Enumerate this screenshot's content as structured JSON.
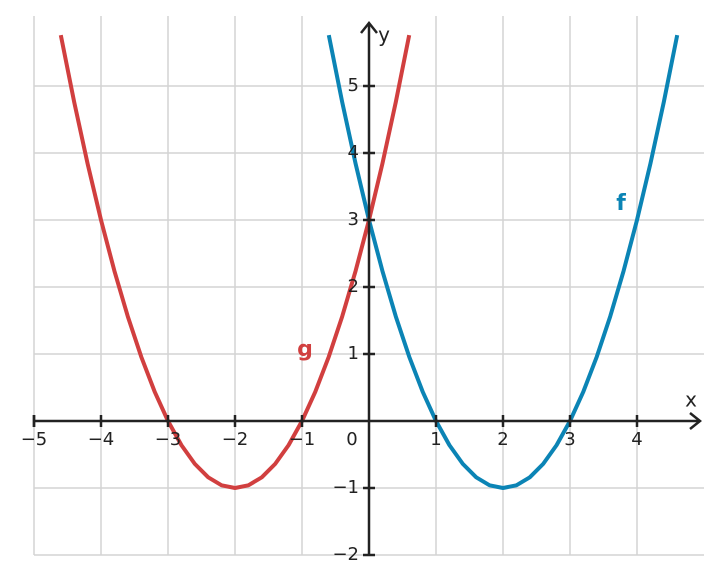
{
  "chart_data": {
    "type": "line",
    "x_label": "x",
    "y_label": "y",
    "xlim": [
      -5,
      5
    ],
    "ylim": [
      -2,
      6
    ],
    "xticks": [
      {
        "value": -5,
        "label": "−5"
      },
      {
        "value": -4,
        "label": "−4"
      },
      {
        "value": -3,
        "label": "−3"
      },
      {
        "value": -2,
        "label": "−2"
      },
      {
        "value": -1,
        "label": "−1"
      },
      0,
      1,
      2,
      3,
      4
    ],
    "yticks": [
      {
        "value": -2,
        "label": "−2"
      },
      {
        "value": -1,
        "label": "−1"
      },
      1,
      2,
      3,
      4,
      5
    ],
    "grid": true,
    "series": [
      {
        "name": "f",
        "color": "#0b84b5",
        "x": [
          -0.6,
          -0.4,
          -0.2,
          0,
          0.2,
          0.4,
          0.6,
          0.8,
          1,
          1.2,
          1.4,
          1.6,
          1.8,
          2,
          2.2,
          2.4,
          2.6,
          2.8,
          3,
          3.2,
          3.4,
          3.6,
          3.8,
          4,
          4.2,
          4.4,
          4.6
        ],
        "values": [
          5.76,
          4.76,
          3.84,
          3,
          2.24,
          1.56,
          0.96,
          0.44,
          0,
          -0.36,
          -0.64,
          -0.84,
          -0.96,
          -1,
          -0.96,
          -0.84,
          -0.64,
          -0.36,
          0,
          0.44,
          0.96,
          1.56,
          2.24,
          3,
          3.84,
          4.76,
          5.76
        ]
      },
      {
        "name": "g",
        "color": "#d13f3f",
        "x": [
          -4.6,
          -4.4,
          -4.2,
          -4,
          -3.8,
          -3.6,
          -3.4,
          -3.2,
          -3,
          -2.8,
          -2.6,
          -2.4,
          -2.2,
          -2,
          -1.8,
          -1.6,
          -1.4,
          -1.2,
          -1,
          -0.8,
          -0.6,
          -0.4,
          -0.2,
          0,
          0.2,
          0.4,
          0.6
        ],
        "values": [
          5.76,
          4.76,
          3.84,
          3,
          2.24,
          1.56,
          0.96,
          0.44,
          0,
          -0.36,
          -0.64,
          -0.84,
          -0.96,
          -1,
          -0.96,
          -0.84,
          -0.64,
          -0.36,
          0,
          0.44,
          0.96,
          1.56,
          2.24,
          3,
          3.84,
          4.76,
          5.76
        ]
      }
    ]
  }
}
